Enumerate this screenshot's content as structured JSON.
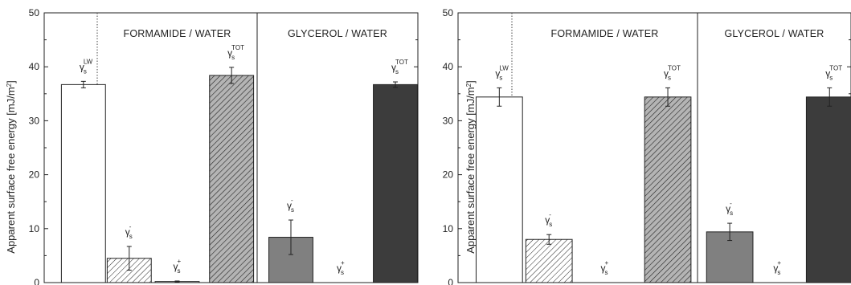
{
  "chart_data": [
    {
      "type": "bar",
      "ylabel": "Apparent surface free energy [mJ/m²]",
      "ylim": [
        0,
        50
      ],
      "yticks": [
        0,
        10,
        20,
        30,
        40,
        50
      ],
      "sections": [
        "FORMAMIDE / WATER",
        "GLYCEROL / WATER"
      ],
      "bars": [
        {
          "label_base": "γ",
          "label_sub": "s",
          "label_sup": "LW",
          "value": 36.7,
          "error": 0.6,
          "fill": "white"
        },
        {
          "label_base": "γ",
          "label_sub": "s",
          "label_sup": "-",
          "value": 4.5,
          "error": 2.2,
          "fill": "hatch-white"
        },
        {
          "label_base": "γ",
          "label_sub": "s",
          "label_sup": "+",
          "value": 0.2,
          "error": 0.1,
          "fill": "white"
        },
        {
          "label_base": "γ",
          "label_sub": "s",
          "label_sup": "TOT",
          "value": 38.4,
          "error": 1.5,
          "fill": "hatch-gray"
        },
        {
          "label_base": "γ",
          "label_sub": "s",
          "label_sup": "-",
          "value": 8.4,
          "error": 3.2,
          "fill": "#808080"
        },
        {
          "label_base": "γ",
          "label_sub": "s",
          "label_sup": "+",
          "value": 0.0,
          "error": 0,
          "fill": "#808080"
        },
        {
          "label_base": "γ",
          "label_sub": "s",
          "label_sup": "TOT",
          "value": 36.7,
          "error": 0.5,
          "fill": "#3c3c3c"
        }
      ]
    },
    {
      "type": "bar",
      "ylabel": "Apparent surface free energy [mJ/m²]",
      "ylim": [
        0,
        50
      ],
      "yticks": [
        0,
        10,
        20,
        30,
        40,
        50
      ],
      "sections": [
        "FORMAMIDE / WATER",
        "GLYCEROL / WATER"
      ],
      "bars": [
        {
          "label_base": "γ",
          "label_sub": "s",
          "label_sup": "LW",
          "value": 34.4,
          "error": 1.7,
          "fill": "white"
        },
        {
          "label_base": "γ",
          "label_sub": "s",
          "label_sup": "-",
          "value": 8.0,
          "error": 0.9,
          "fill": "hatch-white"
        },
        {
          "label_base": "γ",
          "label_sub": "s",
          "label_sup": "+",
          "value": 0.0,
          "error": 0,
          "fill": "white"
        },
        {
          "label_base": "γ",
          "label_sub": "s",
          "label_sup": "TOT",
          "value": 34.4,
          "error": 1.7,
          "fill": "hatch-gray"
        },
        {
          "label_base": "γ",
          "label_sub": "s",
          "label_sup": "-",
          "value": 9.4,
          "error": 1.6,
          "fill": "#808080"
        },
        {
          "label_base": "γ",
          "label_sub": "s",
          "label_sup": "+",
          "value": 0.0,
          "error": 0,
          "fill": "#808080"
        },
        {
          "label_base": "γ",
          "label_sub": "s",
          "label_sup": "TOT",
          "value": 34.4,
          "error": 1.7,
          "fill": "#3c3c3c"
        }
      ]
    }
  ]
}
